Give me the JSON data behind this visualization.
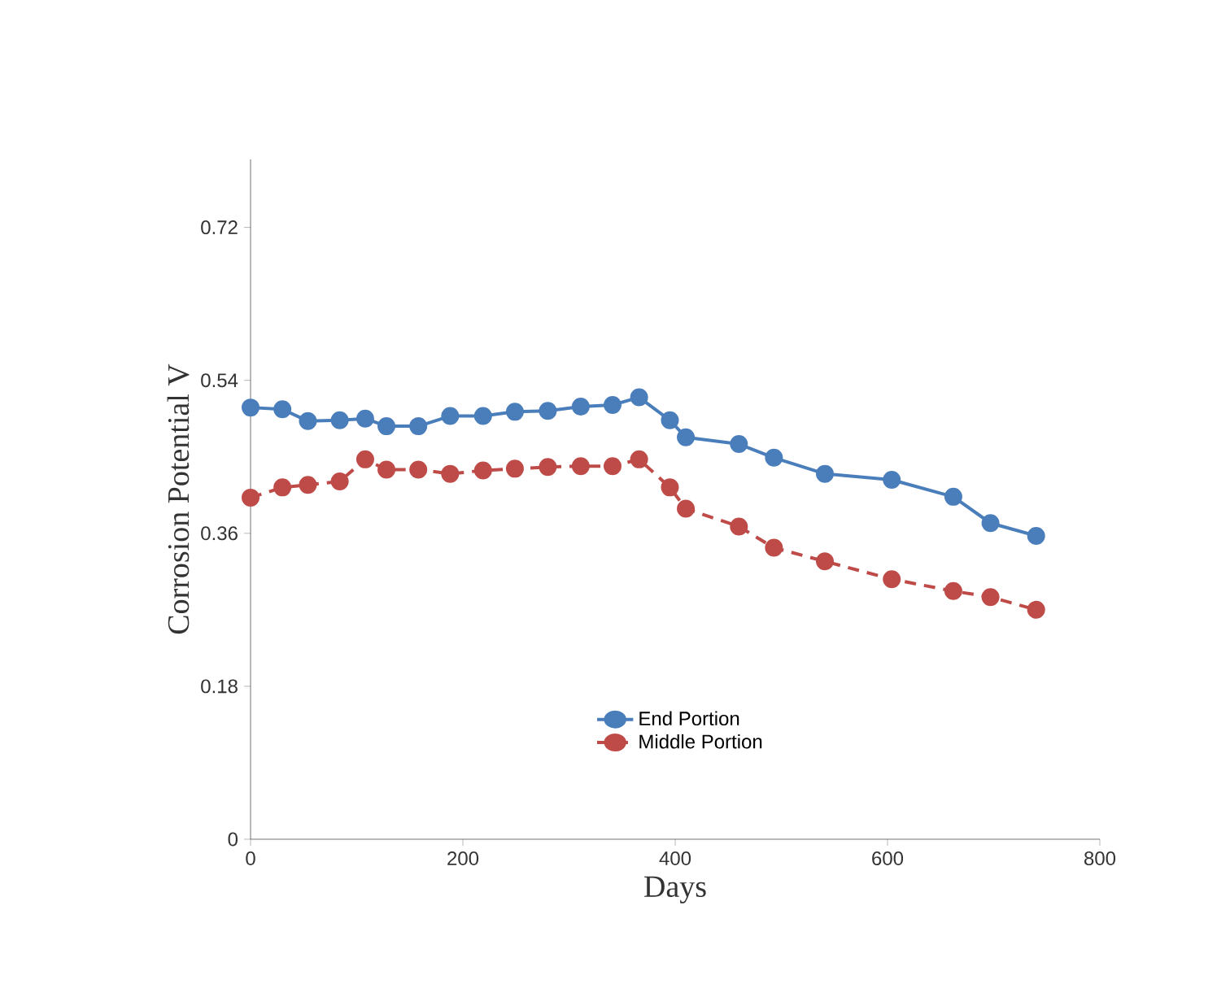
{
  "chart_data": {
    "type": "line",
    "xlabel": "Days",
    "ylabel": "Corrosion Potential V",
    "x": [
      0,
      30,
      54,
      84,
      108,
      128,
      158,
      188,
      219,
      249,
      280,
      311,
      341,
      366,
      395,
      410,
      460,
      493,
      541,
      604,
      662,
      697,
      740
    ],
    "series": [
      {
        "name": "End Portion",
        "color": "#4a7ebb",
        "line_style": "solid",
        "values": [
          0.508,
          0.506,
          0.492,
          0.493,
          0.495,
          0.486,
          0.486,
          0.498,
          0.498,
          0.503,
          0.504,
          0.509,
          0.511,
          0.52,
          0.493,
          0.473,
          0.465,
          0.449,
          0.43,
          0.423,
          0.403,
          0.372,
          0.357
        ]
      },
      {
        "name": "Middle Portion",
        "color": "#be4b48",
        "line_style": "dashed",
        "values": [
          0.402,
          0.414,
          0.417,
          0.421,
          0.447,
          0.435,
          0.435,
          0.43,
          0.434,
          0.436,
          0.438,
          0.439,
          0.439,
          0.447,
          0.414,
          0.389,
          0.368,
          0.343,
          0.327,
          0.306,
          0.292,
          0.285,
          0.27
        ]
      }
    ],
    "marker": "circle",
    "legend": "bottom",
    "grid": false,
    "xlim": [
      0,
      800
    ],
    "ylim": [
      0,
      0.8
    ],
    "xticks": [
      0,
      200,
      400,
      600,
      800
    ],
    "yticks": [
      0,
      0.18,
      0.36,
      0.54,
      0.72
    ]
  }
}
